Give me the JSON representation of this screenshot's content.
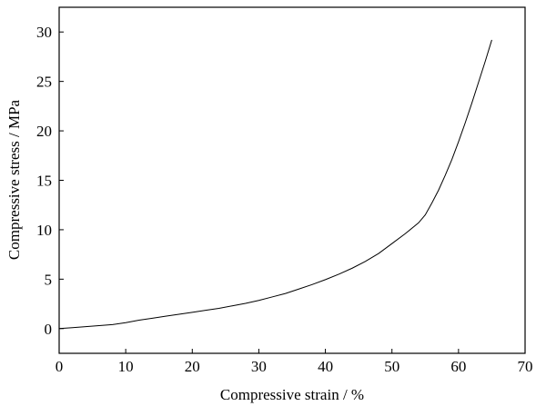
{
  "chart_data": {
    "type": "line",
    "title": "",
    "xlabel": "Compressive strain / %",
    "ylabel": "Compressive stress / MPa",
    "xlim": [
      0,
      70
    ],
    "ylim": [
      -2.5,
      32.5
    ],
    "xticks": [
      0,
      10,
      20,
      30,
      40,
      50,
      60,
      70
    ],
    "yticks": [
      0,
      5,
      10,
      15,
      20,
      25,
      30
    ],
    "grid": false,
    "legend": "none",
    "series": [
      {
        "color": "#000000",
        "x": [
          0,
          2,
          4,
          6,
          8,
          10,
          12,
          14,
          16,
          18,
          20,
          22,
          24,
          26,
          28,
          30,
          32,
          34,
          36,
          38,
          40,
          42,
          44,
          46,
          48,
          50,
          52,
          54,
          55,
          56,
          57,
          58,
          59,
          60,
          61,
          62,
          63,
          64,
          65
        ],
        "y": [
          0.0,
          0.1,
          0.2,
          0.3,
          0.4,
          0.6,
          0.85,
          1.05,
          1.25,
          1.45,
          1.65,
          1.85,
          2.05,
          2.3,
          2.55,
          2.85,
          3.2,
          3.55,
          4.0,
          4.45,
          4.95,
          5.5,
          6.1,
          6.8,
          7.6,
          8.6,
          9.6,
          10.7,
          11.5,
          12.7,
          14.0,
          15.5,
          17.1,
          18.9,
          20.8,
          22.8,
          24.9,
          27.0,
          29.2
        ]
      }
    ]
  }
}
